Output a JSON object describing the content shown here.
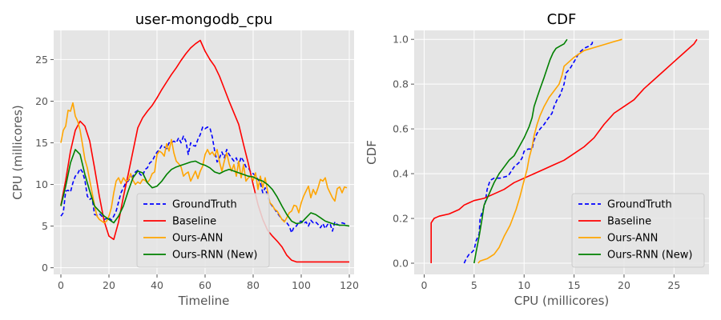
{
  "chart_data": [
    {
      "type": "line",
      "title": "user-mongodb_cpu",
      "xlabel": "Timeline",
      "ylabel": "CPU (millicores)",
      "xlim": [
        -3,
        122
      ],
      "ylim": [
        -0.8,
        28.5
      ],
      "xticks": [
        0,
        20,
        40,
        60,
        80,
        100,
        120
      ],
      "yticks": [
        0,
        5,
        10,
        15,
        20,
        25
      ],
      "grid": true,
      "legend": "lower center",
      "legend_entries": [
        "GroundTruth",
        "Baseline",
        "Ours-ANN",
        "Ours-RNN (New)"
      ],
      "series": [
        {
          "name": "GroundTruth",
          "color": "#0000ff",
          "style": "dashed",
          "x": [
            0,
            1,
            2,
            3,
            4,
            5,
            6,
            7,
            8,
            9,
            10,
            11,
            12,
            13,
            14,
            15,
            16,
            17,
            18,
            19,
            20,
            21,
            22,
            23,
            24,
            25,
            26,
            27,
            28,
            29,
            30,
            31,
            32,
            33,
            34,
            35,
            36,
            37,
            38,
            39,
            40,
            41,
            42,
            43,
            44,
            45,
            46,
            47,
            48,
            49,
            50,
            51,
            52,
            53,
            54,
            55,
            56,
            57,
            58,
            59,
            60,
            61,
            62,
            63,
            64,
            65,
            66,
            67,
            68,
            69,
            70,
            71,
            72,
            73,
            74,
            75,
            76,
            77,
            78,
            79,
            80,
            81,
            82,
            83,
            84,
            85,
            86,
            87,
            88,
            89,
            90,
            91,
            92,
            93,
            94,
            95,
            96,
            97,
            98,
            99,
            100,
            101,
            102,
            103,
            104,
            105,
            106,
            107,
            108,
            109,
            110,
            111,
            112,
            113,
            114,
            115,
            116,
            117,
            118,
            119
          ],
          "y": [
            6.2,
            6.6,
            9.2,
            9.3,
            9.1,
            10.2,
            11.0,
            11.3,
            11.9,
            11.5,
            10.5,
            8.6,
            8.2,
            8.4,
            6.4,
            6.3,
            6.5,
            6.2,
            5.8,
            5.9,
            6.0,
            5.7,
            6.2,
            6.8,
            7.9,
            9.0,
            9.6,
            10.2,
            10.4,
            10.9,
            11.0,
            11.5,
            11.7,
            11.2,
            11.0,
            11.8,
            12.0,
            12.6,
            12.8,
            13.4,
            13.9,
            14.2,
            14.7,
            14.5,
            14.3,
            15.0,
            15.0,
            15.2,
            15.0,
            15.6,
            15.0,
            15.8,
            15.2,
            13.6,
            15.0,
            14.7,
            14.6,
            15.4,
            16.0,
            16.9,
            16.7,
            16.9,
            16.8,
            15.7,
            14.0,
            12.7,
            13.2,
            13.9,
            13.2,
            14.2,
            13.6,
            13.2,
            12.8,
            13.2,
            12.3,
            13.3,
            12.8,
            12.1,
            12.0,
            11.5,
            11.3,
            11.0,
            10.6,
            10.2,
            9.0,
            9.6,
            8.6,
            7.8,
            7.4,
            7.0,
            6.6,
            6.2,
            5.8,
            5.6,
            5.4,
            5.0,
            4.2,
            4.9,
            5.0,
            5.5,
            5.6,
            5.3,
            5.5,
            5.0,
            5.7,
            5.4,
            5.5,
            5.2,
            4.8,
            5.3,
            4.7,
            5.2,
            5.3,
            4.4,
            5.5,
            5.2,
            5.1,
            5.4,
            5.3,
            5.2
          ]
        },
        {
          "name": "Baseline",
          "color": "#ff0000",
          "style": "solid",
          "x": [
            0,
            2,
            4,
            6,
            8,
            10,
            12,
            14,
            16,
            18,
            20,
            22,
            24,
            26,
            28,
            30,
            32,
            34,
            36,
            38,
            40,
            42,
            44,
            46,
            48,
            50,
            52,
            54,
            56,
            58,
            60,
            62,
            64,
            66,
            68,
            70,
            72,
            74,
            76,
            78,
            80,
            82,
            84,
            86,
            88,
            90,
            92,
            94,
            96,
            98,
            100,
            105,
            110,
            115,
            120
          ],
          "y": [
            7.5,
            10.5,
            14.0,
            16.5,
            17.6,
            17.0,
            15.2,
            12.0,
            8.6,
            5.6,
            3.8,
            3.4,
            5.5,
            8.5,
            11.2,
            14.0,
            16.8,
            18.0,
            18.8,
            19.5,
            20.4,
            21.4,
            22.3,
            23.2,
            24.0,
            24.9,
            25.7,
            26.4,
            26.9,
            27.3,
            26.0,
            25.0,
            24.2,
            23.0,
            21.5,
            20.0,
            18.6,
            17.2,
            14.8,
            12.5,
            10.0,
            7.6,
            5.8,
            4.5,
            3.8,
            3.2,
            2.5,
            1.5,
            0.9,
            0.7,
            0.7,
            0.7,
            0.7,
            0.7,
            0.7
          ]
        },
        {
          "name": "Ours-ANN",
          "color": "#ffa500",
          "style": "solid",
          "x": [
            0,
            1,
            2,
            3,
            4,
            5,
            6,
            7,
            8,
            9,
            10,
            11,
            12,
            13,
            14,
            15,
            16,
            17,
            18,
            19,
            20,
            21,
            22,
            23,
            24,
            25,
            26,
            27,
            28,
            29,
            30,
            31,
            32,
            33,
            34,
            35,
            36,
            37,
            38,
            39,
            40,
            41,
            42,
            43,
            44,
            45,
            46,
            47,
            48,
            49,
            50,
            51,
            52,
            53,
            54,
            55,
            56,
            57,
            58,
            59,
            60,
            61,
            62,
            63,
            64,
            65,
            66,
            67,
            68,
            69,
            70,
            71,
            72,
            73,
            74,
            75,
            76,
            77,
            78,
            79,
            80,
            81,
            82,
            83,
            84,
            85,
            86,
            87,
            88,
            89,
            90,
            91,
            92,
            93,
            94,
            95,
            96,
            97,
            98,
            99,
            100,
            101,
            102,
            103,
            104,
            105,
            106,
            107,
            108,
            109,
            110,
            111,
            112,
            113,
            114,
            115,
            116,
            117,
            118,
            119
          ],
          "y": [
            15.0,
            16.5,
            17.0,
            18.9,
            18.8,
            19.8,
            18.2,
            17.6,
            16.5,
            14.8,
            13.0,
            12.0,
            10.5,
            9.0,
            7.5,
            6.2,
            5.8,
            5.6,
            5.4,
            5.6,
            6.2,
            7.2,
            9.0,
            10.4,
            10.8,
            10.1,
            10.8,
            10.4,
            10.5,
            11.3,
            10.5,
            10.0,
            10.3,
            10.1,
            10.6,
            10.5,
            10.2,
            10.6,
            11.3,
            11.5,
            13.6,
            14.0,
            13.8,
            13.4,
            14.9,
            14.0,
            15.4,
            13.8,
            12.8,
            12.5,
            12.1,
            11.0,
            11.3,
            11.5,
            10.4,
            11.0,
            11.6,
            10.7,
            11.6,
            12.2,
            13.6,
            14.2,
            13.6,
            13.9,
            13.4,
            14.2,
            12.7,
            11.6,
            12.8,
            13.8,
            12.5,
            11.6,
            12.4,
            11.0,
            12.8,
            10.8,
            12.4,
            10.4,
            10.8,
            11.0,
            10.5,
            11.4,
            9.4,
            11.0,
            9.6,
            10.8,
            9.2,
            7.8,
            7.5,
            7.0,
            6.8,
            6.3,
            5.8,
            5.5,
            6.0,
            6.6,
            6.8,
            7.5,
            7.4,
            6.6,
            7.8,
            8.6,
            9.2,
            9.8,
            8.4,
            9.4,
            8.8,
            9.6,
            10.6,
            10.4,
            10.8,
            9.6,
            9.0,
            8.4,
            8.0,
            9.5,
            9.7,
            9.0,
            9.7,
            9.6
          ]
        },
        {
          "name": "Ours-RNN (New)",
          "color": "#008000",
          "style": "solid",
          "x": [
            0,
            2,
            4,
            6,
            8,
            10,
            12,
            14,
            16,
            18,
            20,
            22,
            24,
            26,
            28,
            30,
            32,
            34,
            36,
            38,
            40,
            42,
            44,
            46,
            48,
            50,
            52,
            54,
            56,
            58,
            60,
            62,
            64,
            66,
            68,
            70,
            72,
            74,
            76,
            78,
            80,
            82,
            84,
            86,
            88,
            90,
            92,
            94,
            96,
            98,
            100,
            102,
            104,
            106,
            108,
            110,
            112,
            114,
            116,
            118,
            120
          ],
          "y": [
            7.4,
            9.8,
            12.6,
            14.2,
            13.6,
            11.2,
            9.2,
            7.4,
            6.8,
            6.2,
            5.8,
            5.4,
            6.2,
            7.4,
            9.2,
            10.8,
            11.6,
            11.4,
            10.2,
            9.6,
            9.8,
            10.4,
            11.2,
            11.8,
            12.1,
            12.3,
            12.5,
            12.7,
            12.8,
            12.5,
            12.3,
            12.0,
            11.5,
            11.3,
            11.6,
            11.8,
            11.6,
            11.4,
            11.2,
            11.0,
            10.9,
            10.6,
            10.4,
            10.0,
            9.4,
            8.5,
            7.4,
            6.4,
            5.6,
            5.3,
            5.4,
            6.0,
            6.6,
            6.4,
            6.0,
            5.6,
            5.4,
            5.2,
            5.1,
            5.1,
            5.0
          ]
        }
      ]
    },
    {
      "type": "line",
      "title": "CDF",
      "xlabel": "CPU (millicores)",
      "ylabel": "CDF",
      "xlim": [
        -1.0,
        28.5
      ],
      "ylim": [
        -0.05,
        1.04
      ],
      "xticks": [
        0,
        5,
        10,
        15,
        20,
        25
      ],
      "yticks": [
        0.0,
        0.2,
        0.4,
        0.6,
        0.8,
        1.0
      ],
      "grid": true,
      "legend": "lower right",
      "legend_entries": [
        "GroundTruth",
        "Baseline",
        "Ours-ANN",
        "Ours-RNN (New)"
      ],
      "series": [
        {
          "name": "GroundTruth",
          "color": "#0000ff",
          "style": "dashed",
          "x": [
            4.0,
            4.2,
            4.5,
            4.8,
            5.0,
            5.2,
            5.5,
            5.6,
            5.9,
            6.1,
            6.3,
            6.6,
            7.0,
            7.6,
            8.4,
            9.0,
            9.5,
            9.8,
            10.0,
            10.4,
            10.8,
            11.0,
            11.3,
            11.6,
            12.0,
            12.3,
            12.8,
            13.0,
            13.3,
            13.6,
            14.0,
            14.2,
            14.6,
            15.0,
            15.5,
            16.0,
            16.5,
            16.8,
            16.9
          ],
          "y": [
            0.0,
            0.02,
            0.04,
            0.05,
            0.06,
            0.1,
            0.13,
            0.2,
            0.24,
            0.27,
            0.33,
            0.37,
            0.38,
            0.38,
            0.39,
            0.43,
            0.45,
            0.47,
            0.5,
            0.51,
            0.51,
            0.55,
            0.58,
            0.6,
            0.62,
            0.64,
            0.67,
            0.7,
            0.73,
            0.75,
            0.8,
            0.85,
            0.87,
            0.9,
            0.94,
            0.96,
            0.97,
            0.98,
            1.0
          ]
        },
        {
          "name": "Baseline",
          "color": "#ff0000",
          "style": "solid",
          "x": [
            0.7,
            0.7,
            1.0,
            1.5,
            2.5,
            3.5,
            4.0,
            4.5,
            5.0,
            6.0,
            7.0,
            8.0,
            9.0,
            10.0,
            11.0,
            12.0,
            13.0,
            14.0,
            15.0,
            16.0,
            17.0,
            18.0,
            19.0,
            20.0,
            21.0,
            22.0,
            23.0,
            24.0,
            25.0,
            26.0,
            27.0,
            27.3
          ],
          "y": [
            0.0,
            0.18,
            0.2,
            0.21,
            0.22,
            0.24,
            0.26,
            0.27,
            0.28,
            0.29,
            0.31,
            0.33,
            0.36,
            0.38,
            0.4,
            0.42,
            0.44,
            0.46,
            0.49,
            0.52,
            0.56,
            0.62,
            0.67,
            0.7,
            0.73,
            0.78,
            0.82,
            0.86,
            0.9,
            0.94,
            0.98,
            1.0
          ]
        },
        {
          "name": "Ours-ANN",
          "color": "#ffa500",
          "style": "solid",
          "x": [
            5.4,
            5.6,
            6.3,
            7.0,
            7.5,
            8.0,
            8.6,
            9.2,
            9.6,
            10.0,
            10.3,
            10.5,
            10.8,
            11.0,
            11.3,
            11.6,
            12.0,
            12.5,
            13.0,
            13.5,
            13.8,
            14.0,
            14.5,
            15.0,
            16.0,
            17.5,
            19.0,
            19.8
          ],
          "y": [
            0.0,
            0.01,
            0.02,
            0.04,
            0.07,
            0.12,
            0.17,
            0.24,
            0.3,
            0.37,
            0.42,
            0.47,
            0.52,
            0.57,
            0.62,
            0.66,
            0.7,
            0.74,
            0.77,
            0.8,
            0.84,
            0.88,
            0.9,
            0.92,
            0.95,
            0.97,
            0.99,
            1.0
          ]
        },
        {
          "name": "Ours-RNN (New)",
          "color": "#008000",
          "style": "solid",
          "x": [
            5.0,
            5.2,
            5.5,
            5.8,
            6.0,
            6.5,
            7.0,
            7.5,
            8.0,
            8.5,
            9.0,
            9.5,
            10.0,
            10.5,
            10.8,
            11.0,
            11.3,
            11.6,
            12.0,
            12.3,
            12.6,
            12.9,
            13.2,
            13.6,
            14.0,
            14.3
          ],
          "y": [
            0.0,
            0.05,
            0.12,
            0.2,
            0.26,
            0.31,
            0.36,
            0.4,
            0.43,
            0.46,
            0.48,
            0.52,
            0.56,
            0.61,
            0.65,
            0.7,
            0.74,
            0.78,
            0.83,
            0.87,
            0.91,
            0.94,
            0.96,
            0.97,
            0.98,
            1.0
          ]
        }
      ]
    }
  ]
}
